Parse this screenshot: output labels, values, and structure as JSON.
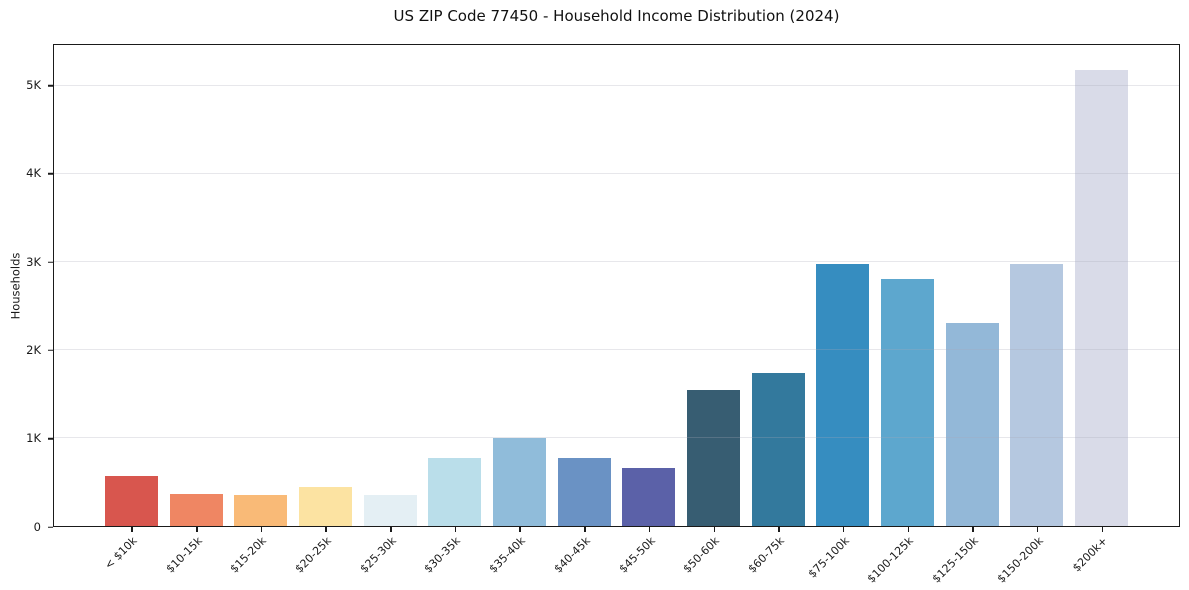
{
  "chart_data": {
    "type": "bar",
    "title": "US ZIP Code 77450 - Household Income Distribution (2024)",
    "xlabel": "",
    "ylabel": "Households",
    "categories": [
      "< $10k",
      "$10-15k",
      "$15-20k",
      "$20-25k",
      "$25-30k",
      "$30-35k",
      "$35-40k",
      "$40-45k",
      "$45-50k",
      "$50-60k",
      "$60-75k",
      "$75-100k",
      "$100-125k",
      "$125-150k",
      "$150-200k",
      "$200k+"
    ],
    "values": [
      570,
      365,
      355,
      440,
      350,
      775,
      1000,
      775,
      660,
      1550,
      1745,
      2975,
      2810,
      2310,
      2985,
      5190
    ],
    "bar_colors": [
      "#d8564e",
      "#ef8663",
      "#f9ba77",
      "#fce3a2",
      "#e4eff4",
      "#badeea",
      "#90bcda",
      "#6a92c4",
      "#5b61a8",
      "#375d72",
      "#33799d",
      "#368dc0",
      "#5da7ce",
      "#93b8d8",
      "#b5c8e0",
      "#d9dbe8"
    ],
    "ylim": [
      0,
      5470
    ],
    "yticks": [
      {
        "value": 0,
        "label": "0"
      },
      {
        "value": 1000,
        "label": "1K"
      },
      {
        "value": 2000,
        "label": "2K"
      },
      {
        "value": 3000,
        "label": "3K"
      },
      {
        "value": 4000,
        "label": "4K"
      },
      {
        "value": 5000,
        "label": "5K"
      }
    ],
    "grid": "horizontal",
    "legend": "none",
    "x_label_rotation_deg": 45
  }
}
